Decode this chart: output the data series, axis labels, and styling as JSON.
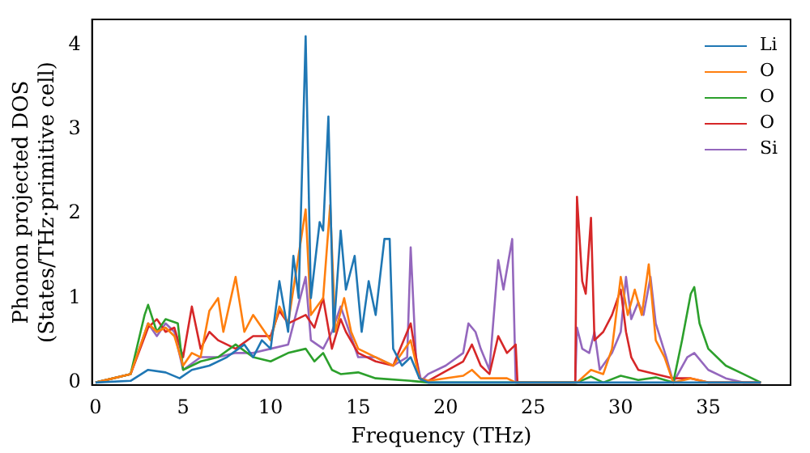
{
  "chart_data": {
    "type": "line",
    "xlabel": "Frequency (THz)",
    "ylabel": "Phonon projected DOS\n(States/THz·primitive cell)",
    "xlim": [
      -0.2,
      39.7
    ],
    "ylim": [
      -0.03,
      4.3
    ],
    "xticks": [
      0,
      5,
      10,
      15,
      20,
      25,
      30,
      35
    ],
    "yticks": [
      0,
      1,
      2,
      3,
      4
    ],
    "grid": false,
    "legend": "top right",
    "line_style": "solid",
    "series": [
      {
        "name": "Li",
        "color": "#1f77b4",
        "x": [
          0,
          2,
          3,
          4,
          4.8,
          5.5,
          6.5,
          7.5,
          8.5,
          9,
          9.5,
          10,
          10.5,
          11,
          11.3,
          11.6,
          12,
          12.3,
          12.8,
          13,
          13.3,
          13.6,
          14,
          14.3,
          14.8,
          15.2,
          15.6,
          16,
          16.5,
          16.8,
          17,
          17.5,
          18,
          18.5,
          19,
          25,
          38
        ],
        "values": [
          0,
          0.02,
          0.15,
          0.12,
          0.05,
          0.15,
          0.2,
          0.3,
          0.45,
          0.3,
          0.5,
          0.4,
          1.2,
          0.6,
          1.5,
          1.0,
          4.1,
          1.0,
          1.9,
          1.8,
          3.15,
          0.6,
          1.8,
          1.1,
          1.5,
          0.6,
          1.2,
          0.8,
          1.7,
          1.7,
          0.4,
          0.2,
          0.3,
          0.05,
          0,
          0,
          0
        ]
      },
      {
        "name": "O",
        "color": "#ff7f0e",
        "x": [
          0,
          2,
          3,
          3.5,
          4,
          4.5,
          5,
          5.5,
          6,
          6.5,
          7,
          7.3,
          8,
          8.5,
          9,
          10,
          10.5,
          11,
          12,
          12.3,
          13,
          13.4,
          13.7,
          14.2,
          14.6,
          15,
          16,
          17,
          18,
          18.5,
          19,
          21,
          21.5,
          22,
          23.5,
          24,
          27.5,
          28.3,
          29,
          29.5,
          30,
          30.4,
          30.8,
          31.2,
          31.6,
          32,
          32.5,
          33,
          34,
          35,
          38
        ],
        "values": [
          0,
          0.1,
          0.7,
          0.6,
          0.65,
          0.55,
          0.2,
          0.35,
          0.3,
          0.85,
          1.0,
          0.6,
          1.25,
          0.6,
          0.8,
          0.5,
          0.9,
          0.7,
          2.05,
          0.8,
          1.0,
          2.1,
          0.6,
          1.0,
          0.6,
          0.4,
          0.3,
          0.2,
          0.5,
          0.05,
          0.02,
          0.08,
          0.15,
          0.05,
          0.05,
          0,
          0,
          0.15,
          0.1,
          0.4,
          1.25,
          0.8,
          1.1,
          0.8,
          1.4,
          0.5,
          0.3,
          0,
          0.05,
          0,
          0
        ]
      },
      {
        "name": "O",
        "color": "#2ca02c",
        "x": [
          0,
          2,
          2.8,
          3,
          3.5,
          4,
          4.7,
          5,
          6,
          7,
          8,
          9,
          10,
          11,
          12,
          12.5,
          13,
          13.5,
          14,
          15,
          16,
          18,
          19,
          27.5,
          28.3,
          29,
          30,
          31,
          32,
          33,
          33.5,
          34,
          34.2,
          34.5,
          35,
          36,
          37,
          38
        ],
        "values": [
          0,
          0.1,
          0.8,
          0.92,
          0.6,
          0.75,
          0.7,
          0.15,
          0.25,
          0.3,
          0.45,
          0.3,
          0.25,
          0.35,
          0.4,
          0.25,
          0.35,
          0.15,
          0.1,
          0.12,
          0.05,
          0.02,
          0,
          0,
          0.07,
          0,
          0.08,
          0.03,
          0.06,
          0,
          0.5,
          1.05,
          1.13,
          0.7,
          0.4,
          0.2,
          0.1,
          0
        ]
      },
      {
        "name": "O",
        "color": "#d62728",
        "x": [
          0,
          2,
          3,
          3.5,
          4,
          4.5,
          5,
          5.5,
          6,
          6.5,
          7,
          8,
          9,
          10,
          10.5,
          11,
          12,
          12.5,
          13,
          13.5,
          14,
          14.3,
          15,
          16,
          17,
          18,
          18.5,
          19,
          21,
          21.5,
          22,
          22.5,
          23,
          23.5,
          24,
          24.1,
          27.4,
          27.5,
          27.8,
          28,
          28.3,
          28.5,
          29,
          29.5,
          30,
          30.3,
          30.6,
          31,
          32,
          33,
          34,
          35,
          38
        ],
        "values": [
          0,
          0.1,
          0.65,
          0.75,
          0.6,
          0.65,
          0.3,
          0.9,
          0.4,
          0.6,
          0.5,
          0.4,
          0.55,
          0.55,
          0.85,
          0.7,
          0.8,
          0.65,
          1.0,
          0.4,
          0.75,
          0.6,
          0.35,
          0.25,
          0.2,
          0.7,
          0.05,
          0.02,
          0.25,
          0.45,
          0.2,
          0.1,
          0.55,
          0.35,
          0.45,
          0,
          0,
          2.2,
          1.2,
          1.05,
          1.95,
          0.5,
          0.6,
          0.8,
          1.1,
          0.6,
          0.3,
          0.15,
          0.1,
          0.05,
          0.05,
          0,
          0
        ]
      },
      {
        "name": "Si",
        "color": "#9467bd",
        "x": [
          0,
          2,
          3,
          3.5,
          4,
          4.5,
          5,
          6,
          7,
          8,
          9,
          10,
          11,
          12,
          12.3,
          13,
          13.5,
          14,
          14.5,
          15,
          16,
          17,
          17.8,
          18,
          18.3,
          18.6,
          19,
          20,
          21,
          21.3,
          21.7,
          22,
          22.5,
          23,
          23.3,
          23.8,
          24,
          27.4,
          27.5,
          27.8,
          28.2,
          28.5,
          28.8,
          29.5,
          30,
          30.3,
          30.6,
          31,
          31.3,
          31.7,
          32,
          32.6,
          33,
          33.8,
          34.2,
          35,
          36,
          37,
          38
        ],
        "values": [
          0,
          0.1,
          0.7,
          0.55,
          0.7,
          0.6,
          0.15,
          0.3,
          0.3,
          0.35,
          0.35,
          0.4,
          0.45,
          1.25,
          0.5,
          0.4,
          0.6,
          0.9,
          0.6,
          0.3,
          0.3,
          0.2,
          0.3,
          1.6,
          0.3,
          0.02,
          0.1,
          0.2,
          0.35,
          0.7,
          0.6,
          0.4,
          0.15,
          1.45,
          1.1,
          1.7,
          0,
          0,
          0.65,
          0.4,
          0.35,
          0.6,
          0.15,
          0.35,
          0.6,
          1.25,
          0.75,
          0.95,
          0.8,
          1.25,
          0.7,
          0.3,
          0,
          0.3,
          0.35,
          0.15,
          0.05,
          0,
          0
        ]
      }
    ]
  }
}
